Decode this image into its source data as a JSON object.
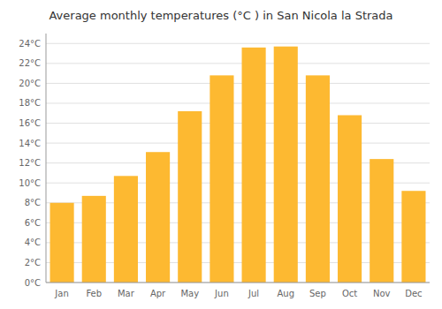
{
  "chart_data": {
    "type": "bar",
    "title": "Average monthly temperatures (°C ) in San Nicola la Strada",
    "categories": [
      "Jan",
      "Feb",
      "Mar",
      "Apr",
      "May",
      "Jun",
      "Jul",
      "Aug",
      "Sep",
      "Oct",
      "Nov",
      "Dec"
    ],
    "values": [
      8.0,
      8.7,
      10.7,
      13.1,
      17.2,
      20.8,
      23.6,
      23.7,
      20.8,
      16.8,
      12.4,
      9.2
    ],
    "color": "#FDB931",
    "ylim": [
      0,
      25
    ],
    "yticks": [
      {
        "value": 0,
        "label": "0°C"
      },
      {
        "value": 2,
        "label": "2°C"
      },
      {
        "value": 4,
        "label": "4°C"
      },
      {
        "value": 6,
        "label": "6°C"
      },
      {
        "value": 8,
        "label": "8°C"
      },
      {
        "value": 10,
        "label": "10°C"
      },
      {
        "value": 12,
        "label": "12°C"
      },
      {
        "value": 14,
        "label": "14°C"
      },
      {
        "value": 16,
        "label": "16°C"
      },
      {
        "value": 18,
        "label": "18°C"
      },
      {
        "value": 20,
        "label": "20°C"
      },
      {
        "value": 22,
        "label": "22°C"
      },
      {
        "value": 24,
        "label": "24°C"
      }
    ],
    "grid": true
  }
}
